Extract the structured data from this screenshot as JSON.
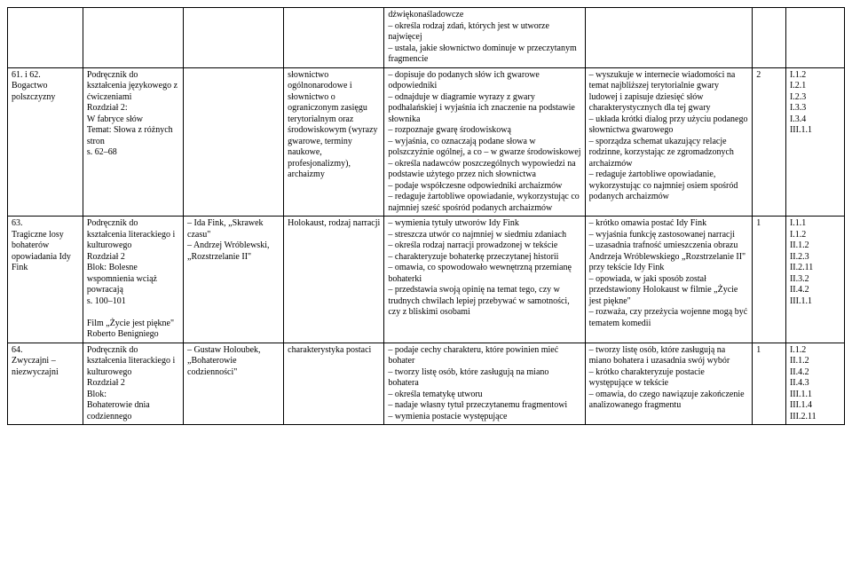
{
  "rows": [
    {
      "c1": "",
      "c2": "",
      "c3": "",
      "c4": "",
      "c5": "dźwiękonaśladowcze\n– określa rodzaj zdań, których jest w utworze najwięcej\n– ustala, jakie słownictwo dominuje w przeczytanym fragmencie",
      "c6": "",
      "c7": "",
      "c8": ""
    },
    {
      "c1": "61. i 62.\nBogactwo polszczyzny",
      "c2": "Podręcznik do kształcenia językowego z ćwiczeniami\nRozdział 2:\nW fabryce słów\nTemat: Słowa z różnych stron\ns. 62–68",
      "c3": "",
      "c4": "słownictwo ogólnonarodowe i słownictwo o ograniczonym zasięgu terytorialnym oraz środowiskowym (wyrazy gwarowe, terminy naukowe, profesjonalizmy), archaizmy",
      "c5": "– dopisuje do podanych słów ich gwarowe odpowiedniki\n– odnajduje w diagramie wyrazy z gwary podhalańskiej i wyjaśnia ich znaczenie na podstawie słownika\n– rozpoznaje gwarę środowiskową\n– wyjaśnia, co oznaczają podane słowa w polszczyźnie ogólnej, a co – w gwarze środowiskowej\n– określa nadawców poszczególnych wypowiedzi na podstawie użytego przez nich słownictwa\n– podaje współczesne odpowiedniki archaizmów\n– redaguje żartobliwe opowiadanie, wykorzystując co najmniej sześć spośród podanych archaizmów",
      "c6": "– wyszukuje w internecie wiadomości na temat najbliższej terytorialnie gwary ludowej i zapisuje dziesięć słów charakterystycznych dla tej gwary\n– układa krótki dialog przy użyciu podanego słownictwa gwarowego\n– sporządza schemat ukazujący relacje rodzinne, korzystając ze zgromadzonych archaizmów\n– redaguje żartobliwe opowiadanie, wykorzystując co najmniej osiem spośród podanych archaizmów",
      "c7": "2",
      "c8": "I.1.2\nI.2.1\nI.2.3\nI.3.3\nI.3.4\nIII.1.1"
    },
    {
      "c1": "63.\nTragiczne losy bohaterów opowiadania Idy Fink",
      "c2": "Podręcznik do kształcenia literackiego i kulturowego\nRozdział 2\nBlok: Bolesne wspomnienia wciąż powracają\ns. 100–101\n\nFilm „Życie jest piękne\" Roberto Benigniego",
      "c3": "– Ida Fink, „Skrawek czasu\"\n– Andrzej Wróblewski, „Rozstrzelanie II\"",
      "c4": "Holokaust, rodzaj narracji",
      "c5": "– wymienia tytuły utworów Idy Fink\n– streszcza utwór co najmniej w siedmiu zdaniach\n– określa rodzaj narracji prowadzonej w tekście\n– charakteryzuje bohaterkę przeczytanej historii\n– omawia, co spowodowało wewnętrzną przemianę bohaterki\n– przedstawia swoją opinię na temat tego, czy w trudnych chwilach lepiej przebywać w samotności, czy z bliskimi osobami",
      "c6": "– krótko omawia postać Idy Fink\n– wyjaśnia funkcję zastosowanej narracji\n– uzasadnia trafność umieszczenia obrazu Andrzeja Wróblewskiego „Rozstrzelanie II\" przy tekście Idy Fink\n– opowiada, w jaki sposób został przedstawiony Holokaust w filmie „Życie jest piękne\"\n– rozważa, czy przeżycia wojenne mogą być tematem komedii",
      "c7": "1",
      "c8": "I.1.1\nI.1.2\nII.1.2\nII.2.3\nII.2.11\nII.3.2\nII.4.2\nIII.1.1"
    },
    {
      "c1": "64.\nZwyczajni – niezwyczajni",
      "c2": "Podręcznik do kształcenia literackiego i kulturowego\nRozdział 2\nBlok:\nBohaterowie dnia codziennego",
      "c3": "– Gustaw Holoubek, „Bohaterowie codzienności\"",
      "c4": "charakterystyka postaci",
      "c5": "– podaje cechy charakteru, które powinien mieć bohater\n– tworzy listę osób, które zasługują na miano bohatera\n– określa tematykę utworu\n– nadaje własny tytuł przeczytanemu fragmentowi\n– wymienia postacie występujące",
      "c6": "– tworzy listę osób, które zasługują na miano bohatera i uzasadnia swój wybór\n– krótko charakteryzuje postacie występujące w tekście\n– omawia, do czego nawiązuje zakończenie analizowanego fragmentu",
      "c7": "1",
      "c8": "I.1.2\nII.1.2\nII.4.2\nII.4.3\nIII.1.1\nIII.1.4\nIII.2.11"
    }
  ]
}
